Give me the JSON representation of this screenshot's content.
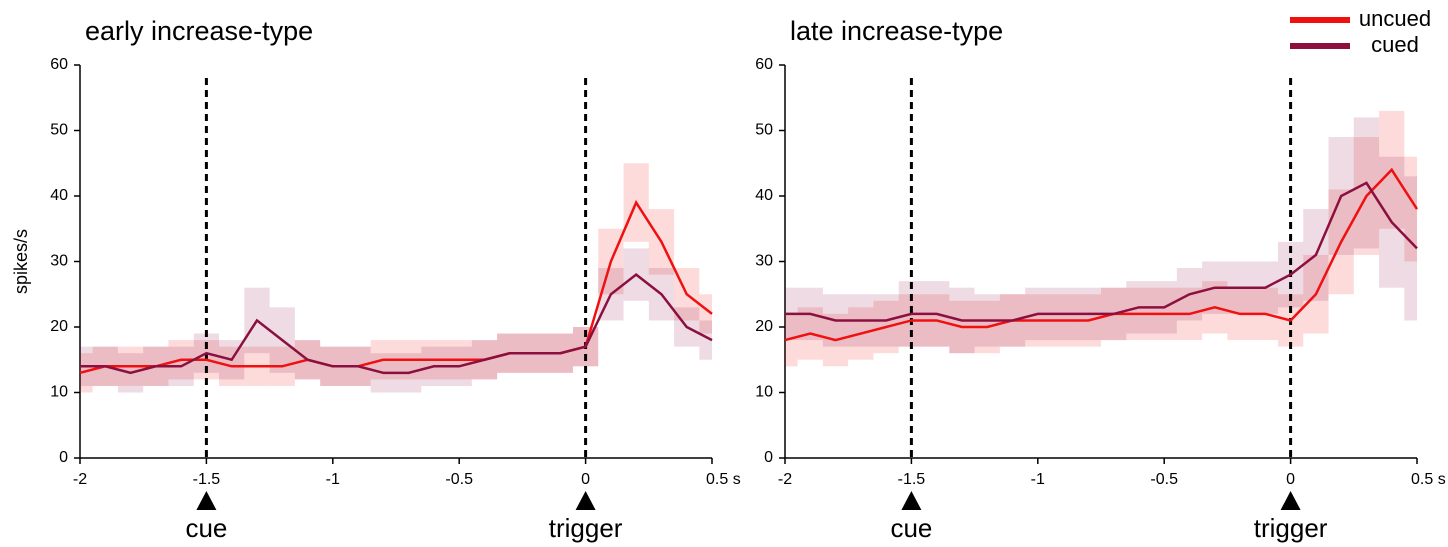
{
  "chart_data": [
    {
      "type": "line",
      "title": "early increase-type",
      "ylabel": "spikes/s",
      "x": [
        -2,
        -1.9,
        -1.8,
        -1.7,
        -1.6,
        -1.5,
        -1.4,
        -1.3,
        -1.2,
        -1.1,
        -1,
        -0.9,
        -0.8,
        -0.7,
        -0.6,
        -0.5,
        -0.4,
        -0.3,
        -0.2,
        -0.1,
        0,
        0.1,
        0.2,
        0.3,
        0.4,
        0.5
      ],
      "xlim": [
        -2,
        0.5
      ],
      "xticks": [
        -2,
        -1.5,
        -1,
        -0.5,
        0,
        {
          "value": 0.5,
          "label": "0.5 s"
        }
      ],
      "ylim": [
        0,
        60
      ],
      "yticks": [
        0,
        10,
        20,
        30,
        40,
        50,
        60
      ],
      "events": [
        {
          "x": -1.5,
          "label": "cue"
        },
        {
          "x": 0,
          "label": "trigger"
        }
      ],
      "series": [
        {
          "name": "uncued",
          "color": "#f01010",
          "values": [
            13,
            14,
            14,
            14,
            15,
            15,
            14,
            14,
            14,
            15,
            14,
            14,
            15,
            15,
            15,
            15,
            15,
            16,
            16,
            16,
            17,
            30,
            39,
            33,
            25,
            22
          ],
          "errors": [
            3,
            3,
            3,
            3,
            3,
            3,
            3,
            3,
            3,
            3,
            3,
            3,
            3,
            3,
            3,
            3,
            3,
            3,
            3,
            3,
            3,
            5,
            6,
            5,
            4,
            3
          ]
        },
        {
          "name": "cued",
          "color": "#8b1040",
          "values": [
            14,
            14,
            13,
            14,
            14,
            16,
            15,
            21,
            18,
            15,
            14,
            14,
            13,
            13,
            14,
            14,
            15,
            16,
            16,
            16,
            17,
            25,
            28,
            25,
            20,
            18
          ],
          "errors": [
            3,
            3,
            3,
            3,
            3,
            3,
            3,
            5,
            5,
            3,
            3,
            3,
            3,
            3,
            3,
            3,
            3,
            3,
            3,
            3,
            3,
            4,
            4,
            4,
            3,
            3
          ]
        }
      ]
    },
    {
      "type": "line",
      "title": "late increase-type",
      "legend": "upper right",
      "x": [
        -2,
        -1.9,
        -1.8,
        -1.7,
        -1.6,
        -1.5,
        -1.4,
        -1.3,
        -1.2,
        -1.1,
        -1,
        -0.9,
        -0.8,
        -0.7,
        -0.6,
        -0.5,
        -0.4,
        -0.3,
        -0.2,
        -0.1,
        0,
        0.1,
        0.2,
        0.3,
        0.4,
        0.5
      ],
      "xlim": [
        -2,
        0.5
      ],
      "xticks": [
        -2,
        -1.5,
        -1,
        -0.5,
        0,
        {
          "value": 0.5,
          "label": "0.5 s"
        }
      ],
      "ylim": [
        0,
        60
      ],
      "yticks": [
        0,
        10,
        20,
        30,
        40,
        50,
        60
      ],
      "events": [
        {
          "x": -1.5,
          "label": "cue"
        },
        {
          "x": 0,
          "label": "trigger"
        }
      ],
      "series": [
        {
          "name": "uncued",
          "color": "#f01010",
          "values": [
            18,
            19,
            18,
            19,
            20,
            21,
            21,
            20,
            20,
            21,
            21,
            21,
            21,
            22,
            22,
            22,
            22,
            23,
            22,
            22,
            21,
            25,
            33,
            40,
            44,
            38
          ],
          "errors": [
            4,
            4,
            4,
            4,
            4,
            4,
            4,
            4,
            4,
            4,
            4,
            4,
            4,
            4,
            4,
            4,
            4,
            4,
            4,
            4,
            4,
            6,
            8,
            9,
            9,
            8
          ]
        },
        {
          "name": "cued",
          "color": "#8b1040",
          "values": [
            22,
            22,
            21,
            21,
            21,
            22,
            22,
            21,
            21,
            21,
            22,
            22,
            22,
            22,
            23,
            23,
            25,
            26,
            26,
            26,
            28,
            31,
            40,
            42,
            36,
            32
          ],
          "errors": [
            4,
            4,
            4,
            4,
            4,
            5,
            5,
            5,
            4,
            4,
            4,
            4,
            4,
            4,
            4,
            4,
            4,
            4,
            4,
            4,
            5,
            7,
            9,
            10,
            10,
            11
          ]
        }
      ]
    }
  ]
}
